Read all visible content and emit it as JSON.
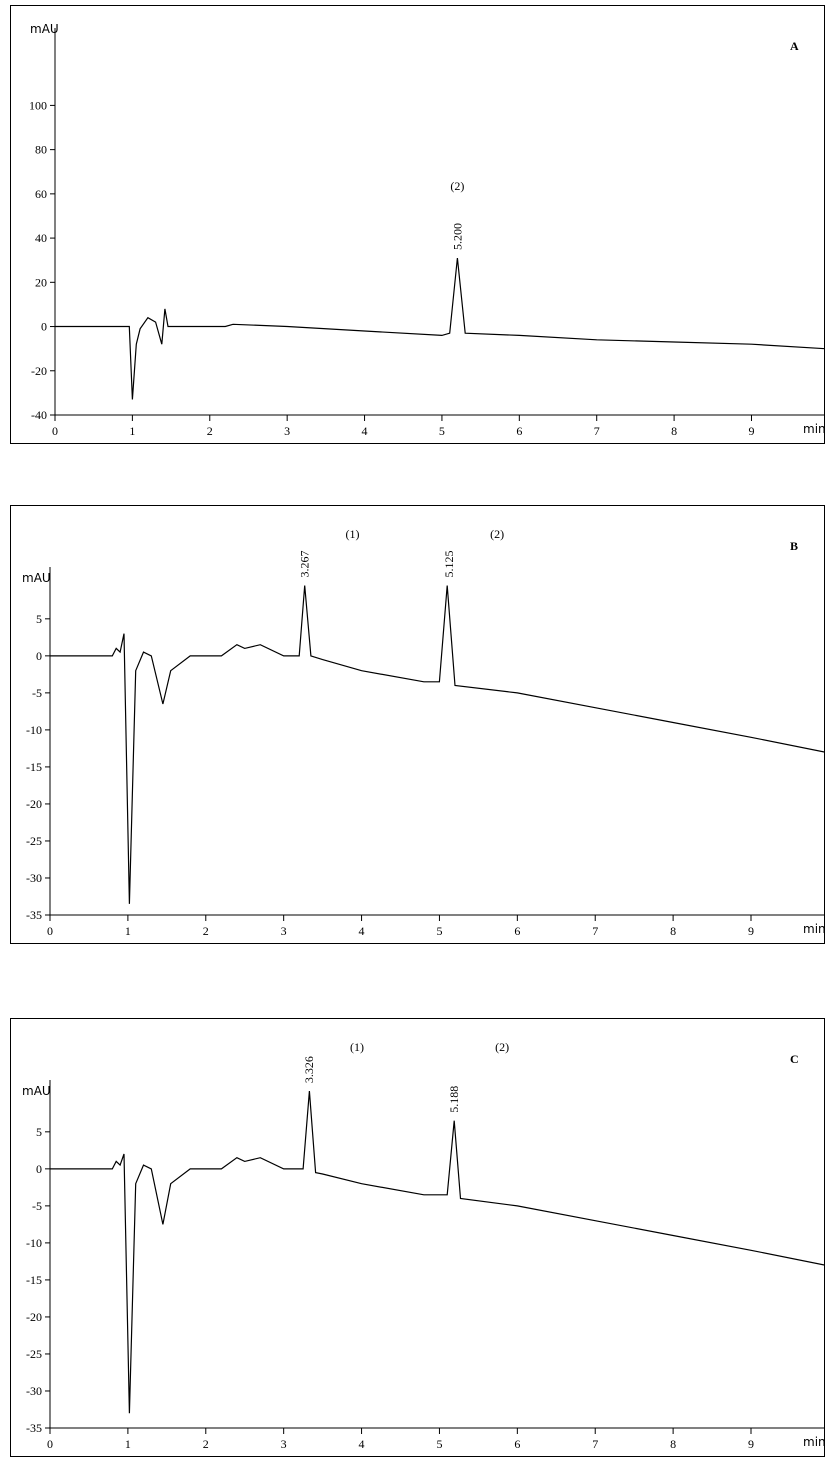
{
  "chart_data": [
    {
      "type": "line",
      "panel": "A",
      "y_label": "mAU",
      "x_label": "min",
      "color": "#000000",
      "x": [
        0,
        0.9,
        0.96,
        1.0,
        1.05,
        1.1,
        1.2,
        1.3,
        1.38,
        1.42,
        1.46,
        2.2,
        2.3,
        3.0,
        4.0,
        5.0,
        5.1,
        5.2,
        5.3,
        6.0,
        7.0,
        8.0,
        9.0,
        9.95
      ],
      "values": [
        0,
        0,
        0,
        -33,
        -8,
        -1,
        4,
        2,
        -8,
        8,
        0,
        0,
        1,
        0,
        -2,
        -4,
        -3,
        31,
        -3,
        -4,
        -6,
        -7,
        -8,
        -10
      ],
      "xlim": [
        0,
        9.95
      ],
      "xticks": [
        0,
        1,
        2,
        3,
        4,
        5,
        6,
        7,
        8,
        9
      ],
      "ylim": [
        -40,
        135
      ],
      "yticks": [
        -40,
        -20,
        0,
        20,
        40,
        60,
        80,
        100
      ],
      "peaks": [
        {
          "value": 5.2,
          "label": "5.200"
        }
      ],
      "compounds": [
        "(2)"
      ]
    },
    {
      "type": "line",
      "panel": "B",
      "y_label": "mAU",
      "x_label": "min",
      "color": "#000000",
      "x": [
        0,
        0.8,
        0.85,
        0.9,
        0.95,
        1.02,
        1.1,
        1.2,
        1.3,
        1.45,
        1.55,
        1.8,
        2.2,
        2.4,
        2.5,
        2.7,
        3.0,
        3.2,
        3.27,
        3.35,
        3.5,
        4.0,
        4.8,
        5.0,
        5.1,
        5.2,
        6.0,
        7.0,
        8.0,
        9.0,
        9.95
      ],
      "values": [
        0,
        0,
        1,
        0.5,
        3,
        -33.5,
        -2,
        0.5,
        0,
        -6.5,
        -2,
        0,
        0,
        1.5,
        1,
        1.5,
        0,
        0,
        9.5,
        0,
        -0.5,
        -2,
        -3.5,
        -3.5,
        9.5,
        -4,
        -5,
        -7,
        -9,
        -11,
        -13
      ],
      "xlim": [
        0,
        9.95
      ],
      "xticks": [
        0,
        1,
        2,
        3,
        4,
        5,
        6,
        7,
        8,
        9
      ],
      "ylim": [
        -35,
        12
      ],
      "yticks": [
        -35,
        -30,
        -25,
        -20,
        -15,
        -10,
        -5,
        0,
        5
      ],
      "peaks": [
        {
          "value": 3.267,
          "label": "3.267"
        },
        {
          "value": 5.125,
          "label": "5.125"
        }
      ],
      "compounds": [
        "(1)",
        "(2)"
      ]
    },
    {
      "type": "line",
      "panel": "C",
      "y_label": "mAU",
      "x_label": "min",
      "color": "#000000",
      "x": [
        0,
        0.8,
        0.85,
        0.9,
        0.95,
        1.02,
        1.1,
        1.2,
        1.3,
        1.45,
        1.55,
        1.8,
        2.2,
        2.4,
        2.5,
        2.7,
        3.0,
        3.25,
        3.33,
        3.41,
        3.5,
        4.0,
        4.8,
        5.1,
        5.19,
        5.27,
        6.0,
        7.0,
        8.0,
        9.0,
        9.95
      ],
      "values": [
        0,
        0,
        1,
        0.5,
        2,
        -33,
        -2,
        0.5,
        0,
        -7.5,
        -2,
        0,
        0,
        1.5,
        1,
        1.5,
        0,
        0,
        10.5,
        -0.5,
        -0.7,
        -2,
        -3.5,
        -3.5,
        6.5,
        -4,
        -5,
        -7,
        -9,
        -11,
        -13
      ],
      "xlim": [
        0,
        9.95
      ],
      "xticks": [
        0,
        1,
        2,
        3,
        4,
        5,
        6,
        7,
        8,
        9
      ],
      "ylim": [
        -35,
        12
      ],
      "yticks": [
        -35,
        -30,
        -25,
        -20,
        -15,
        -10,
        -5,
        0,
        5
      ],
      "peaks": [
        {
          "value": 3.326,
          "label": "3.326"
        },
        {
          "value": 5.188,
          "label": "5.188"
        }
      ],
      "compounds": [
        "(1)",
        "(2)"
      ]
    }
  ]
}
